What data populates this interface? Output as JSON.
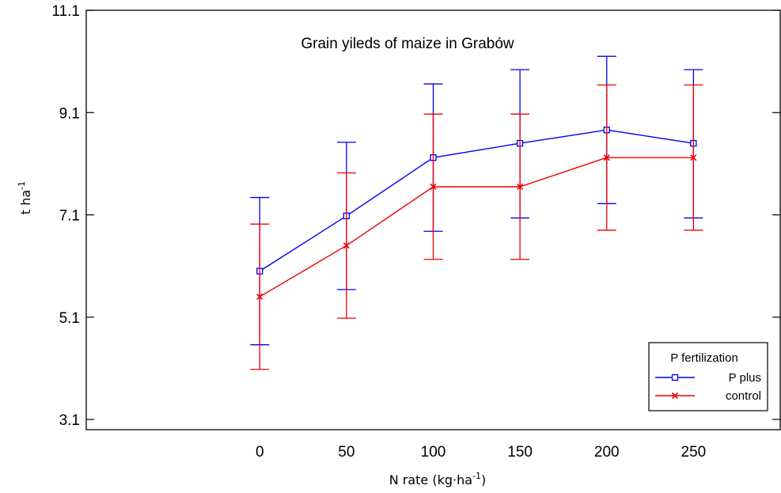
{
  "chart_data": {
    "type": "line",
    "title": "Grain yileds of maize in Grabów",
    "xlabel": {
      "text": "N rate (kg·ha",
      "sup": "-1",
      "close": ")"
    },
    "ylabel": {
      "text": "t ha",
      "sup": "-1"
    },
    "x": [
      0,
      50,
      100,
      150,
      200,
      250
    ],
    "x_ticks": [
      "0",
      "50",
      "100",
      "150",
      "200",
      "250"
    ],
    "xlim": [
      -100,
      300
    ],
    "y_ticks": [
      "3.1",
      "5.1",
      "7.1",
      "9.1",
      "11.1"
    ],
    "ylim": [
      2.9,
      11.1
    ],
    "grid": false,
    "legend": {
      "title": "P fertilization",
      "position": "bottom-right"
    },
    "series": [
      {
        "name": "P plus",
        "color": "#0000ee",
        "marker": "square",
        "values": [
          6.0,
          7.08,
          8.22,
          8.5,
          8.76,
          8.5
        ],
        "err_low": [
          4.56,
          5.64,
          6.78,
          7.04,
          7.32,
          7.04
        ],
        "err_high": [
          7.44,
          8.52,
          9.66,
          9.94,
          10.2,
          9.94
        ]
      },
      {
        "name": "control",
        "color": "#ee0000",
        "marker": "x",
        "values": [
          5.5,
          6.5,
          7.65,
          7.65,
          8.22,
          8.22
        ],
        "err_low": [
          4.08,
          5.08,
          6.23,
          6.23,
          6.8,
          6.8
        ],
        "err_high": [
          6.92,
          7.92,
          9.07,
          9.07,
          9.64,
          9.64
        ]
      }
    ]
  }
}
